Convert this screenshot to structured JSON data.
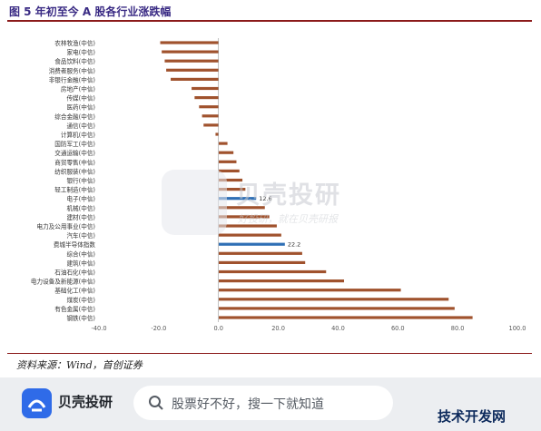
{
  "figure": {
    "title": "图 5  年初至今 A 股各行业涨跌幅"
  },
  "source": {
    "text": "资料来源：Wind，首创证券"
  },
  "watermark": {
    "brand": "贝壳投研",
    "slogan": "好投研，就在贝壳研报"
  },
  "app_bar": {
    "name": "贝壳投研",
    "search_placeholder": "股票好不好，搜一下就知道"
  },
  "corner_mark": "技术开发网",
  "colors": {
    "bar": "#a0522d",
    "highlight": "#2f6fb5",
    "title": "#3a2b84",
    "rule": "#8b1a1a"
  },
  "chart_data": {
    "type": "bar",
    "orientation": "horizontal",
    "categories": [
      "农林牧渔(中信)",
      "家电(中信)",
      "食品饮料(中信)",
      "消费者服务(中信)",
      "非银行金融(中信)",
      "房地产(中信)",
      "传媒(中信)",
      "医药(中信)",
      "综合金融(中信)",
      "通信(中信)",
      "计算机(中信)",
      "国防军工(中信)",
      "交通运输(中信)",
      "商贸零售(中信)",
      "纺织服装(中信)",
      "银行(中信)",
      "轻工制造(中信)",
      "电子(中信)",
      "机械(中信)",
      "建材(中信)",
      "电力及公用事业(中信)",
      "汽车(中信)",
      "费城半导体指数",
      "综合(中信)",
      "建筑(中信)",
      "石油石化(中信)",
      "电力设备及新能源(中信)",
      "基础化工(中信)",
      "煤炭(中信)",
      "有色金属(中信)",
      "钢铁(中信)"
    ],
    "values": [
      -19.5,
      -19.0,
      -18.0,
      -17.5,
      -16.0,
      -9.0,
      -8.0,
      -6.5,
      -5.5,
      -5.0,
      -1.0,
      3.0,
      5.0,
      6.0,
      7.0,
      8.0,
      9.0,
      12.6,
      15.5,
      17.0,
      19.5,
      21.0,
      22.2,
      28.0,
      29.0,
      36.0,
      42.0,
      61.0,
      77.0,
      79.0,
      85.0
    ],
    "highlight": [
      {
        "category": "电子(中信)",
        "label": "12.6"
      },
      {
        "category": "费城半导体指数",
        "label": "22.2"
      }
    ],
    "x_ticks": [
      "-40.0",
      "-20.0",
      "0.0",
      "20.0",
      "40.0",
      "60.0",
      "80.0",
      "100.0"
    ],
    "xlim": [
      -40,
      100
    ],
    "grid": false
  }
}
